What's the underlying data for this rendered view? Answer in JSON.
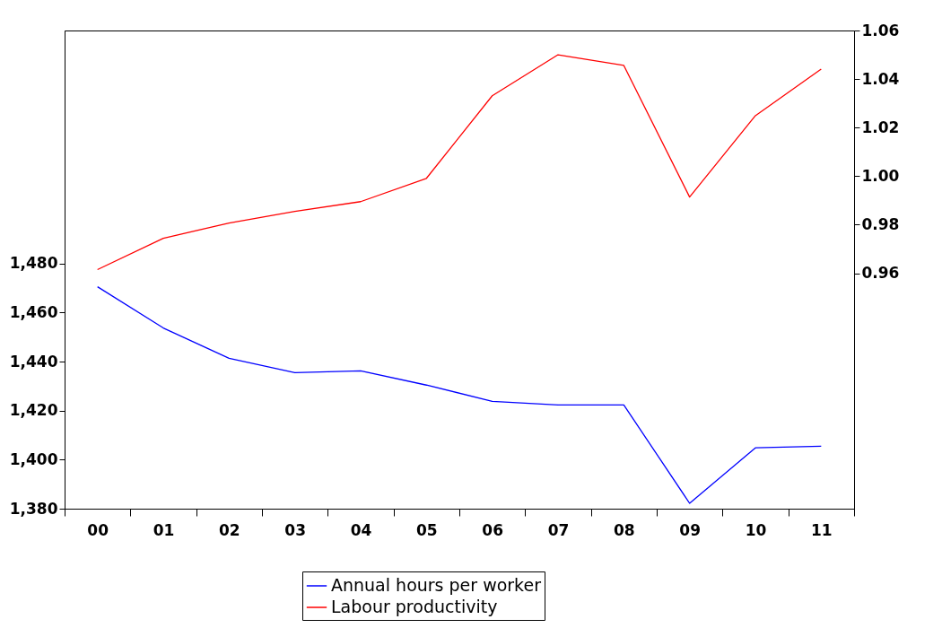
{
  "chart_data": {
    "type": "line",
    "categories": [
      "00",
      "01",
      "02",
      "03",
      "04",
      "05",
      "06",
      "07",
      "08",
      "09",
      "10",
      "11"
    ],
    "series": [
      {
        "name": "Annual hours per worker",
        "color": "#0000ff",
        "values": [
          1470.5,
          1453.7,
          1441.3,
          1435.5,
          1436.2,
          1430.4,
          1423.8,
          1422.3,
          1422.3,
          1382.2,
          1404.8,
          1405.5
        ]
      },
      {
        "name": "Labour productivity",
        "color": "#ff0000",
        "axis": "y2",
        "values": [
          0.9615,
          0.9744,
          0.9807,
          0.9855,
          0.9895,
          0.9991,
          1.0331,
          1.05,
          1.0456,
          0.9914,
          1.0249,
          1.0441
        ]
      }
    ],
    "ylim": [
      1380,
      1575
    ],
    "yticks": [
      {
        "value": 1380,
        "label": "1,380"
      },
      {
        "value": 1400,
        "label": "1,400"
      },
      {
        "value": 1420,
        "label": "1,420"
      },
      {
        "value": 1440,
        "label": "1,440"
      },
      {
        "value": 1460,
        "label": "1,460"
      },
      {
        "value": 1480,
        "label": "1,480"
      }
    ],
    "y2lim": [
      0.863,
      1.06
    ],
    "y2ticks": [
      0.96,
      0.98,
      {
        "value": 1,
        "label": "1.00"
      },
      1.02,
      1.04,
      1.06
    ],
    "grid": false,
    "legend": "bottom",
    "marker": "none",
    "line_style": "solid"
  }
}
